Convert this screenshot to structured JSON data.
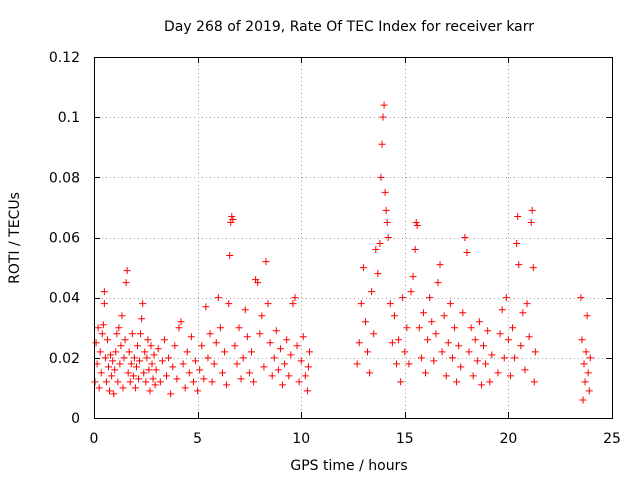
{
  "chart_data": {
    "type": "scatter",
    "title": "Day 268 of 2019, Rate Of TEC Index for receiver karr",
    "xlabel": "GPS time / hours",
    "ylabel": "ROTI / TECUs",
    "xlim": [
      0,
      25
    ],
    "ylim": [
      0,
      0.12
    ],
    "xticks": [
      0,
      5,
      10,
      15,
      20,
      25
    ],
    "xtick_labels": [
      "0",
      "5",
      "10",
      "15",
      "20",
      "25"
    ],
    "yticks": [
      0,
      0.02,
      0.04,
      0.06,
      0.08,
      0.1,
      0.12
    ],
    "ytick_labels": [
      "0",
      "0.02",
      "0.04",
      "0.06",
      "0.08",
      "0.1",
      "0.12"
    ],
    "grid": true,
    "marker": "+",
    "color": "#ff0000",
    "series": [
      {
        "name": "ROTI",
        "points": [
          [
            0.05,
            0.012
          ],
          [
            0.1,
            0.025
          ],
          [
            0.15,
            0.018
          ],
          [
            0.2,
            0.03
          ],
          [
            0.25,
            0.01
          ],
          [
            0.3,
            0.022
          ],
          [
            0.35,
            0.015
          ],
          [
            0.4,
            0.028
          ],
          [
            0.45,
            0.031
          ],
          [
            0.5,
            0.038
          ],
          [
            0.5,
            0.042
          ],
          [
            0.55,
            0.02
          ],
          [
            0.6,
            0.012
          ],
          [
            0.65,
            0.026
          ],
          [
            0.7,
            0.017
          ],
          [
            0.75,
            0.009
          ],
          [
            0.8,
            0.021
          ],
          [
            0.85,
            0.014
          ],
          [
            0.9,
            0.019
          ],
          [
            0.95,
            0.008
          ],
          [
            1.0,
            0.016
          ],
          [
            1.05,
            0.022
          ],
          [
            1.1,
            0.028
          ],
          [
            1.15,
            0.012
          ],
          [
            1.2,
            0.03
          ],
          [
            1.25,
            0.018
          ],
          [
            1.3,
            0.024
          ],
          [
            1.35,
            0.034
          ],
          [
            1.4,
            0.01
          ],
          [
            1.45,
            0.02
          ],
          [
            1.5,
            0.026
          ],
          [
            1.55,
            0.045
          ],
          [
            1.6,
            0.049
          ],
          [
            1.65,
            0.015
          ],
          [
            1.7,
            0.022
          ],
          [
            1.75,
            0.012
          ],
          [
            1.8,
            0.018
          ],
          [
            1.85,
            0.028
          ],
          [
            1.9,
            0.014
          ],
          [
            1.95,
            0.02
          ],
          [
            2.0,
            0.01
          ],
          [
            2.05,
            0.017
          ],
          [
            2.1,
            0.024
          ],
          [
            2.15,
            0.013
          ],
          [
            2.2,
            0.019
          ],
          [
            2.25,
            0.028
          ],
          [
            2.3,
            0.033
          ],
          [
            2.35,
            0.038
          ],
          [
            2.4,
            0.015
          ],
          [
            2.45,
            0.022
          ],
          [
            2.5,
            0.012
          ],
          [
            2.55,
            0.02
          ],
          [
            2.6,
            0.026
          ],
          [
            2.65,
            0.016
          ],
          [
            2.7,
            0.009
          ],
          [
            2.75,
            0.024
          ],
          [
            2.8,
            0.018
          ],
          [
            2.85,
            0.013
          ],
          [
            2.9,
            0.021
          ],
          [
            2.95,
            0.011
          ],
          [
            3.0,
            0.016
          ],
          [
            3.1,
            0.023
          ],
          [
            3.2,
            0.012
          ],
          [
            3.3,
            0.019
          ],
          [
            3.4,
            0.026
          ],
          [
            3.5,
            0.014
          ],
          [
            3.6,
            0.02
          ],
          [
            3.7,
            0.008
          ],
          [
            3.8,
            0.017
          ],
          [
            3.9,
            0.024
          ],
          [
            4.0,
            0.013
          ],
          [
            4.1,
            0.03
          ],
          [
            4.2,
            0.032
          ],
          [
            4.3,
            0.018
          ],
          [
            4.4,
            0.01
          ],
          [
            4.5,
            0.022
          ],
          [
            4.6,
            0.015
          ],
          [
            4.7,
            0.027
          ],
          [
            4.8,
            0.012
          ],
          [
            4.9,
            0.019
          ],
          [
            5.0,
            0.009
          ],
          [
            5.1,
            0.016
          ],
          [
            5.2,
            0.024
          ],
          [
            5.3,
            0.013
          ],
          [
            5.4,
            0.037
          ],
          [
            5.5,
            0.02
          ],
          [
            5.6,
            0.028
          ],
          [
            5.7,
            0.012
          ],
          [
            5.8,
            0.018
          ],
          [
            5.9,
            0.025
          ],
          [
            6.0,
            0.04
          ],
          [
            6.1,
            0.03
          ],
          [
            6.2,
            0.015
          ],
          [
            6.3,
            0.022
          ],
          [
            6.4,
            0.011
          ],
          [
            6.5,
            0.038
          ],
          [
            6.55,
            0.054
          ],
          [
            6.6,
            0.065
          ],
          [
            6.65,
            0.067
          ],
          [
            6.7,
            0.066
          ],
          [
            6.8,
            0.024
          ],
          [
            6.9,
            0.018
          ],
          [
            7.0,
            0.03
          ],
          [
            7.1,
            0.013
          ],
          [
            7.2,
            0.02
          ],
          [
            7.3,
            0.036
          ],
          [
            7.4,
            0.027
          ],
          [
            7.5,
            0.015
          ],
          [
            7.6,
            0.022
          ],
          [
            7.7,
            0.012
          ],
          [
            7.8,
            0.046
          ],
          [
            7.9,
            0.045
          ],
          [
            8.0,
            0.028
          ],
          [
            8.1,
            0.034
          ],
          [
            8.2,
            0.017
          ],
          [
            8.3,
            0.052
          ],
          [
            8.4,
            0.038
          ],
          [
            8.5,
            0.025
          ],
          [
            8.6,
            0.014
          ],
          [
            8.7,
            0.02
          ],
          [
            8.8,
            0.029
          ],
          [
            8.9,
            0.016
          ],
          [
            9.0,
            0.023
          ],
          [
            9.1,
            0.011
          ],
          [
            9.2,
            0.018
          ],
          [
            9.3,
            0.026
          ],
          [
            9.4,
            0.014
          ],
          [
            9.5,
            0.021
          ],
          [
            9.6,
            0.038
          ],
          [
            9.7,
            0.04
          ],
          [
            9.8,
            0.024
          ],
          [
            9.9,
            0.012
          ],
          [
            10.0,
            0.019
          ],
          [
            10.1,
            0.027
          ],
          [
            10.2,
            0.014
          ],
          [
            10.3,
            0.009
          ],
          [
            10.35,
            0.017
          ],
          [
            10.4,
            0.022
          ],
          [
            12.7,
            0.018
          ],
          [
            12.8,
            0.025
          ],
          [
            12.9,
            0.038
          ],
          [
            13.0,
            0.05
          ],
          [
            13.1,
            0.032
          ],
          [
            13.2,
            0.022
          ],
          [
            13.3,
            0.015
          ],
          [
            13.4,
            0.042
          ],
          [
            13.5,
            0.028
          ],
          [
            13.6,
            0.056
          ],
          [
            13.7,
            0.048
          ],
          [
            13.8,
            0.058
          ],
          [
            13.85,
            0.08
          ],
          [
            13.9,
            0.091
          ],
          [
            13.95,
            0.1
          ],
          [
            14.0,
            0.104
          ],
          [
            14.05,
            0.075
          ],
          [
            14.1,
            0.069
          ],
          [
            14.15,
            0.065
          ],
          [
            14.2,
            0.06
          ],
          [
            14.3,
            0.038
          ],
          [
            14.4,
            0.025
          ],
          [
            14.5,
            0.034
          ],
          [
            14.6,
            0.018
          ],
          [
            14.7,
            0.026
          ],
          [
            14.8,
            0.012
          ],
          [
            14.9,
            0.04
          ],
          [
            15.0,
            0.022
          ],
          [
            15.1,
            0.03
          ],
          [
            15.2,
            0.018
          ],
          [
            15.3,
            0.042
          ],
          [
            15.4,
            0.047
          ],
          [
            15.5,
            0.056
          ],
          [
            15.55,
            0.065
          ],
          [
            15.6,
            0.064
          ],
          [
            15.7,
            0.03
          ],
          [
            15.8,
            0.02
          ],
          [
            15.9,
            0.035
          ],
          [
            16.0,
            0.015
          ],
          [
            16.1,
            0.026
          ],
          [
            16.2,
            0.04
          ],
          [
            16.3,
            0.032
          ],
          [
            16.4,
            0.019
          ],
          [
            16.5,
            0.028
          ],
          [
            16.6,
            0.045
          ],
          [
            16.7,
            0.051
          ],
          [
            16.8,
            0.022
          ],
          [
            16.9,
            0.034
          ],
          [
            17.0,
            0.014
          ],
          [
            17.1,
            0.025
          ],
          [
            17.2,
            0.038
          ],
          [
            17.3,
            0.02
          ],
          [
            17.4,
            0.03
          ],
          [
            17.5,
            0.012
          ],
          [
            17.6,
            0.024
          ],
          [
            17.7,
            0.017
          ],
          [
            17.8,
            0.035
          ],
          [
            17.9,
            0.06
          ],
          [
            18.0,
            0.055
          ],
          [
            18.1,
            0.022
          ],
          [
            18.2,
            0.03
          ],
          [
            18.3,
            0.014
          ],
          [
            18.4,
            0.026
          ],
          [
            18.5,
            0.019
          ],
          [
            18.6,
            0.032
          ],
          [
            18.7,
            0.011
          ],
          [
            18.8,
            0.024
          ],
          [
            18.9,
            0.018
          ],
          [
            19.0,
            0.029
          ],
          [
            19.1,
            0.012
          ],
          [
            19.2,
            0.021
          ],
          [
            19.5,
            0.015
          ],
          [
            19.6,
            0.028
          ],
          [
            19.7,
            0.036
          ],
          [
            19.8,
            0.02
          ],
          [
            19.9,
            0.04
          ],
          [
            20.0,
            0.026
          ],
          [
            20.1,
            0.014
          ],
          [
            20.2,
            0.03
          ],
          [
            20.3,
            0.02
          ],
          [
            20.4,
            0.058
          ],
          [
            20.45,
            0.067
          ],
          [
            20.5,
            0.051
          ],
          [
            20.6,
            0.024
          ],
          [
            20.7,
            0.035
          ],
          [
            20.8,
            0.016
          ],
          [
            20.9,
            0.038
          ],
          [
            21.0,
            0.027
          ],
          [
            21.1,
            0.065
          ],
          [
            21.15,
            0.069
          ],
          [
            21.2,
            0.05
          ],
          [
            21.25,
            0.012
          ],
          [
            21.3,
            0.022
          ],
          [
            23.5,
            0.04
          ],
          [
            23.55,
            0.026
          ],
          [
            23.6,
            0.006
          ],
          [
            23.65,
            0.018
          ],
          [
            23.7,
            0.012
          ],
          [
            23.75,
            0.022
          ],
          [
            23.8,
            0.034
          ],
          [
            23.85,
            0.015
          ],
          [
            23.9,
            0.009
          ],
          [
            23.95,
            0.02
          ]
        ]
      }
    ]
  }
}
